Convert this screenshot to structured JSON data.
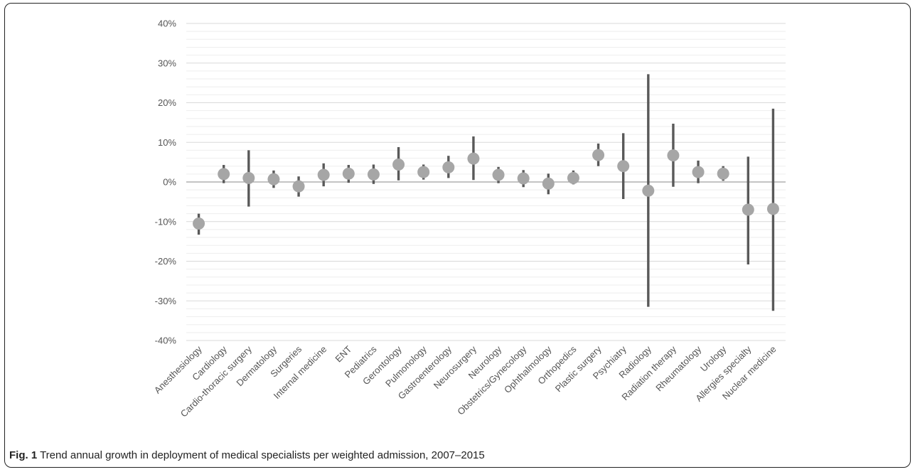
{
  "chart_data": {
    "type": "scatter",
    "subtype": "point-with-error-bars",
    "y_format": "percent",
    "ylim": [
      -40,
      40
    ],
    "y_major_step": 10,
    "y_minor_step": 2,
    "y_ticks": [
      "40%",
      "30%",
      "20%",
      "10%",
      "0%",
      "-10%",
      "-20%",
      "-30%",
      "-40%"
    ],
    "y_tick_values": [
      40,
      30,
      20,
      10,
      0,
      -10,
      -20,
      -30,
      -40
    ],
    "grid": true,
    "legend": "none",
    "colors": {
      "marker": "#a6a6a6",
      "error_bar": "#595959",
      "grid_major": "#d9d9d9",
      "grid_minor": "#eeeeee",
      "zero_line": "#a0a0a0"
    },
    "categories": [
      "Anesthesiology",
      "Cardiology",
      "Cardio-thoracic surgery",
      "Dermatology",
      "Surgeries",
      "Internal medicine",
      "ENT",
      "Pediatrics",
      "Gerontology",
      "Pulmonology",
      "Gastroenterology",
      "Neurosurgery",
      "Neurology",
      "Obstetrics/Gynecology",
      "Ophthalmology",
      "Orthopedics",
      "Plastic surgery",
      "Psychiatry",
      "Radiology",
      "Radiation therapy",
      "Rheumatology",
      "Urology",
      "Allergies specialty",
      "Nuclear medicine"
    ],
    "series": [
      {
        "estimate": [
          -10.5,
          2.0,
          1.0,
          0.7,
          -1.1,
          1.8,
          2.1,
          1.9,
          4.4,
          2.5,
          3.7,
          5.9,
          1.8,
          0.9,
          -0.4,
          1.0,
          6.8,
          4.0,
          -2.2,
          6.7,
          2.5,
          2.1,
          -7.0,
          -6.8
        ],
        "lower": [
          -13.3,
          -0.3,
          -6.2,
          -1.5,
          -3.7,
          -1.1,
          -0.2,
          -0.5,
          0.4,
          0.6,
          1.0,
          0.5,
          -0.3,
          -1.3,
          -3.1,
          -0.6,
          4.0,
          -4.3,
          -31.5,
          -1.2,
          -0.3,
          0.3,
          -20.8,
          -32.5
        ],
        "upper": [
          -8.0,
          4.3,
          8.0,
          2.9,
          1.4,
          4.7,
          4.3,
          4.4,
          8.8,
          4.4,
          6.6,
          11.5,
          3.8,
          3.0,
          2.1,
          2.9,
          9.7,
          12.3,
          27.2,
          14.7,
          5.4,
          4.0,
          6.4,
          18.5
        ]
      }
    ]
  },
  "caption": {
    "label": "Fig. 1",
    "text": " Trend annual growth in deployment of medical specialists per weighted admission, 2007–2015"
  }
}
